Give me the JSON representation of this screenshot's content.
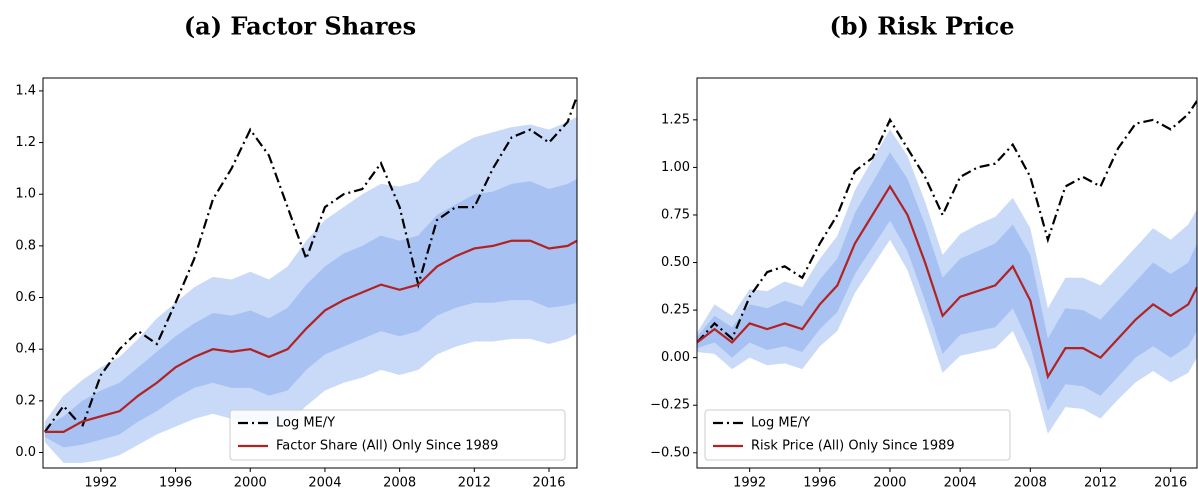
{
  "chart_data": [
    {
      "type": "line",
      "title": "(a) Factor Shares",
      "x": [
        1989,
        1990,
        1991,
        1992,
        1993,
        1994,
        1995,
        1996,
        1997,
        1998,
        1999,
        2000,
        2001,
        2002,
        2003,
        2004,
        2005,
        2006,
        2007,
        2008,
        2009,
        2010,
        2011,
        2012,
        2013,
        2014,
        2015,
        2016,
        2017,
        2017.5
      ],
      "xlim": [
        1988.9,
        2017.5
      ],
      "xticks": [
        1992,
        1996,
        2000,
        2004,
        2008,
        2012,
        2016
      ],
      "ylim": [
        -0.06,
        1.45
      ],
      "yticks": [
        {
          "value": 0,
          "label": "0.0"
        },
        0.2,
        0.4,
        0.6,
        0.8,
        {
          "value": 1,
          "label": "1.0"
        },
        1.2,
        1.4
      ],
      "legend": "lower right",
      "bands": [
        {
          "color": "#c8daf8",
          "lower": [
            0.04,
            -0.04,
            -0.04,
            -0.03,
            -0.01,
            0.03,
            0.07,
            0.1,
            0.13,
            0.15,
            0.13,
            0.12,
            0.09,
            0.11,
            0.18,
            0.24,
            0.27,
            0.29,
            0.32,
            0.3,
            0.32,
            0.38,
            0.41,
            0.43,
            0.43,
            0.44,
            0.44,
            0.42,
            0.44,
            0.46
          ],
          "upper": [
            0.12,
            0.22,
            0.28,
            0.33,
            0.37,
            0.44,
            0.52,
            0.58,
            0.64,
            0.68,
            0.67,
            0.7,
            0.67,
            0.72,
            0.82,
            0.9,
            0.95,
            1.0,
            1.04,
            1.03,
            1.05,
            1.13,
            1.18,
            1.22,
            1.24,
            1.26,
            1.27,
            1.25,
            1.28,
            1.3
          ]
        },
        {
          "color": "#a7c1f2",
          "lower": [
            0.06,
            0.02,
            0.03,
            0.05,
            0.07,
            0.12,
            0.16,
            0.21,
            0.25,
            0.27,
            0.25,
            0.25,
            0.22,
            0.24,
            0.32,
            0.38,
            0.41,
            0.44,
            0.47,
            0.45,
            0.47,
            0.53,
            0.56,
            0.58,
            0.58,
            0.59,
            0.59,
            0.56,
            0.57,
            0.58
          ],
          "upper": [
            0.1,
            0.14,
            0.2,
            0.24,
            0.27,
            0.33,
            0.39,
            0.45,
            0.5,
            0.54,
            0.53,
            0.55,
            0.52,
            0.56,
            0.65,
            0.72,
            0.77,
            0.8,
            0.84,
            0.82,
            0.84,
            0.92,
            0.96,
            1.0,
            1.01,
            1.04,
            1.05,
            1.02,
            1.04,
            1.06
          ]
        }
      ],
      "series": [
        {
          "name": "Log ME/Y",
          "color": "#000000",
          "dash": "dashdot",
          "values": [
            0.08,
            0.18,
            0.1,
            0.3,
            0.4,
            0.47,
            0.42,
            0.58,
            0.75,
            0.98,
            1.1,
            1.25,
            1.15,
            0.95,
            0.75,
            0.95,
            1.0,
            1.02,
            1.12,
            0.95,
            0.65,
            0.9,
            0.95,
            0.95,
            1.1,
            1.22,
            1.25,
            1.2,
            1.28,
            1.38
          ]
        },
        {
          "name": "Factor Share (All) Only Since 1989",
          "color": "#b22222",
          "dash": "solid",
          "values": [
            0.08,
            0.08,
            0.12,
            0.14,
            0.16,
            0.22,
            0.27,
            0.33,
            0.37,
            0.4,
            0.39,
            0.4,
            0.37,
            0.4,
            0.48,
            0.55,
            0.59,
            0.62,
            0.65,
            0.63,
            0.65,
            0.72,
            0.76,
            0.79,
            0.8,
            0.82,
            0.82,
            0.79,
            0.8,
            0.82
          ]
        }
      ]
    },
    {
      "type": "line",
      "title": "(b) Risk Price",
      "x": [
        1989,
        1990,
        1991,
        1992,
        1993,
        1994,
        1995,
        1996,
        1997,
        1998,
        1999,
        2000,
        2001,
        2002,
        2003,
        2004,
        2005,
        2006,
        2007,
        2008,
        2009,
        2010,
        2011,
        2012,
        2013,
        2014,
        2015,
        2016,
        2017,
        2017.5
      ],
      "xlim": [
        1989,
        2017.5
      ],
      "xticks": [
        1992,
        1996,
        2000,
        2004,
        2008,
        2012,
        2016
      ],
      "ylim": [
        -0.58,
        1.47
      ],
      "yticks": [
        {
          "value": -0.5,
          "label": "−0.50"
        },
        {
          "value": -0.25,
          "label": "−0.25"
        },
        {
          "value": 0,
          "label": "0.00"
        },
        {
          "value": 0.25,
          "label": "0.25"
        },
        {
          "value": 0.5,
          "label": "0.50"
        },
        {
          "value": 0.75,
          "label": "0.75"
        },
        {
          "value": 1,
          "label": "1.00"
        },
        {
          "value": 1.25,
          "label": "1.25"
        }
      ],
      "legend": "lower left",
      "bands": [
        {
          "color": "#c8daf8",
          "lower": [
            0.03,
            0.02,
            -0.06,
            0.0,
            -0.04,
            -0.03,
            -0.06,
            0.06,
            0.14,
            0.34,
            0.48,
            0.62,
            0.46,
            0.2,
            -0.08,
            0.01,
            0.03,
            0.05,
            0.14,
            -0.06,
            -0.4,
            -0.26,
            -0.27,
            -0.32,
            -0.22,
            -0.13,
            -0.07,
            -0.13,
            -0.08,
            0.0
          ],
          "upper": [
            0.13,
            0.28,
            0.22,
            0.36,
            0.35,
            0.4,
            0.37,
            0.52,
            0.64,
            0.88,
            1.04,
            1.2,
            1.06,
            0.82,
            0.54,
            0.65,
            0.7,
            0.74,
            0.84,
            0.68,
            0.26,
            0.42,
            0.42,
            0.38,
            0.48,
            0.58,
            0.68,
            0.62,
            0.7,
            0.78
          ]
        },
        {
          "color": "#a7c1f2",
          "lower": [
            0.05,
            0.08,
            0.0,
            0.08,
            0.04,
            0.06,
            0.03,
            0.15,
            0.24,
            0.44,
            0.58,
            0.72,
            0.56,
            0.3,
            0.02,
            0.12,
            0.14,
            0.16,
            0.26,
            0.06,
            -0.28,
            -0.14,
            -0.15,
            -0.2,
            -0.1,
            0.0,
            0.06,
            0.0,
            0.06,
            0.14
          ],
          "upper": [
            0.11,
            0.22,
            0.16,
            0.28,
            0.26,
            0.3,
            0.27,
            0.41,
            0.52,
            0.76,
            0.92,
            1.08,
            0.94,
            0.7,
            0.42,
            0.52,
            0.56,
            0.6,
            0.7,
            0.54,
            0.1,
            0.26,
            0.25,
            0.2,
            0.3,
            0.4,
            0.5,
            0.44,
            0.5,
            0.6
          ]
        }
      ],
      "series": [
        {
          "name": "Log ME/Y",
          "color": "#000000",
          "dash": "dashdot",
          "values": [
            0.08,
            0.18,
            0.1,
            0.32,
            0.45,
            0.48,
            0.42,
            0.6,
            0.75,
            0.98,
            1.05,
            1.25,
            1.1,
            0.95,
            0.75,
            0.95,
            1.0,
            1.02,
            1.12,
            0.95,
            0.62,
            0.9,
            0.95,
            0.9,
            1.1,
            1.23,
            1.25,
            1.2,
            1.28,
            1.35
          ]
        },
        {
          "name": "Risk Price (All) Only Since 1989",
          "color": "#b22222",
          "dash": "solid",
          "values": [
            0.08,
            0.15,
            0.08,
            0.18,
            0.15,
            0.18,
            0.15,
            0.28,
            0.38,
            0.6,
            0.75,
            0.9,
            0.75,
            0.5,
            0.22,
            0.32,
            0.35,
            0.38,
            0.48,
            0.3,
            -0.1,
            0.05,
            0.05,
            0.0,
            0.1,
            0.2,
            0.28,
            0.22,
            0.28,
            0.37
          ]
        }
      ]
    }
  ]
}
